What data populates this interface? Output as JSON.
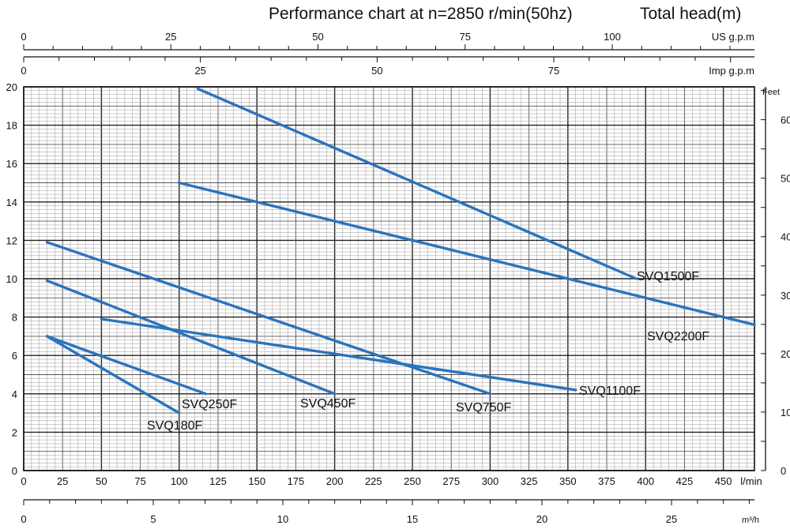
{
  "chart_data": {
    "type": "line",
    "title": "Performance chart at n=2850 r/min(50hz)",
    "ylabel": "Total head(m)",
    "ylabel_right": "Feet",
    "xunit_main": "l/min",
    "xunit_m3h": "m³/h",
    "xunit_us": "US g.p.m",
    "xunit_imp": "Imp g.p.m",
    "xlim": [
      0,
      470
    ],
    "ylim": [
      0,
      20
    ],
    "grid": true,
    "main_x_ticks": [
      0,
      25,
      50,
      75,
      100,
      125,
      150,
      175,
      200,
      225,
      250,
      275,
      300,
      325,
      350,
      375,
      400,
      425,
      450
    ],
    "y_ticks": [
      0,
      2,
      4,
      6,
      8,
      10,
      12,
      14,
      16,
      18,
      20
    ],
    "feet_ticks": [
      0,
      10,
      20,
      30,
      40,
      50,
      60
    ],
    "m3h_ticks": [
      0,
      5,
      10,
      15,
      20,
      25
    ],
    "us_ticks": [
      0,
      25,
      50,
      75,
      100
    ],
    "imp_ticks": [
      0,
      25,
      50,
      75
    ],
    "line_color": "#2a74bd",
    "series": [
      {
        "name": "SVQ180F",
        "x": [
          15,
          100
        ],
        "y": [
          7.0,
          3.0
        ]
      },
      {
        "name": "SVQ250F",
        "x": [
          15,
          117
        ],
        "y": [
          7.0,
          4.0
        ]
      },
      {
        "name": "SVQ450F",
        "x": [
          15,
          200
        ],
        "y": [
          9.9,
          4.0
        ]
      },
      {
        "name": "SVQ750F",
        "x": [
          15,
          300
        ],
        "y": [
          11.9,
          4.0
        ]
      },
      {
        "name": "SVQ1100F",
        "x": [
          50,
          355
        ],
        "y": [
          7.9,
          4.2
        ]
      },
      {
        "name": "SVQ1500F",
        "x": [
          112,
          394
        ],
        "y": [
          19.9,
          10.0
        ]
      },
      {
        "name": "SVQ2200F",
        "x": [
          100,
          470
        ],
        "y": [
          15.0,
          7.6
        ]
      }
    ]
  }
}
